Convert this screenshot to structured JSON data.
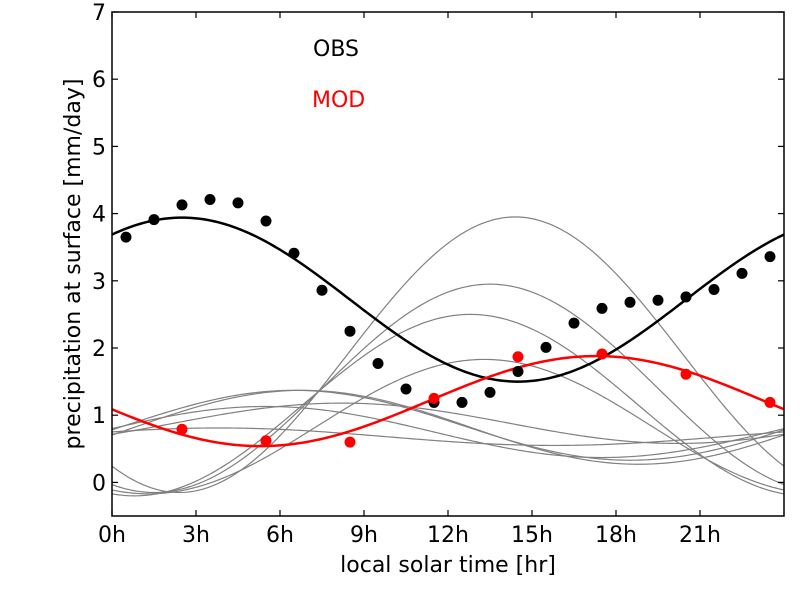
{
  "chart_data": {
    "type": "line",
    "xlabel": "local solar time [hr]",
    "ylabel": "precipitation at surface [mm/day]",
    "xlim": [
      0,
      24
    ],
    "ylim": [
      -0.5,
      7
    ],
    "x_ticks": [
      {
        "value": 0,
        "label": "0h"
      },
      {
        "value": 3,
        "label": "3h"
      },
      {
        "value": 6,
        "label": "6h"
      },
      {
        "value": 9,
        "label": "9h"
      },
      {
        "value": 12,
        "label": "12h"
      },
      {
        "value": 15,
        "label": "15h"
      },
      {
        "value": 18,
        "label": "18h"
      },
      {
        "value": 21,
        "label": "21h"
      }
    ],
    "y_ticks": [
      {
        "value": 0,
        "label": "0"
      },
      {
        "value": 1,
        "label": "1"
      },
      {
        "value": 2,
        "label": "2"
      },
      {
        "value": 3,
        "label": "3"
      },
      {
        "value": 4,
        "label": "4"
      },
      {
        "value": 5,
        "label": "5"
      },
      {
        "value": 6,
        "label": "6"
      },
      {
        "value": 7,
        "label": "7"
      }
    ],
    "legend": [
      {
        "label": "OBS",
        "color": "#000000"
      },
      {
        "label": "MOD",
        "color": "#ff0000"
      }
    ],
    "legend_position": "top-center",
    "grid": false,
    "series": [
      {
        "name": "OBS",
        "kind": "points",
        "color": "#000000",
        "x": [
          0.5,
          1.5,
          2.5,
          3.5,
          4.5,
          5.5,
          6.5,
          7.5,
          8.5,
          9.5,
          10.5,
          11.5,
          12.5,
          13.5,
          14.5,
          15.5,
          16.5,
          17.5,
          18.5,
          19.5,
          20.5,
          21.5,
          22.5,
          23.5
        ],
        "y": [
          3.65,
          3.91,
          4.13,
          4.21,
          4.16,
          3.89,
          3.41,
          2.86,
          2.25,
          1.77,
          1.39,
          1.19,
          1.19,
          1.34,
          1.65,
          2.01,
          2.37,
          2.59,
          2.68,
          2.71,
          2.76,
          2.87,
          3.11,
          3.36
        ]
      },
      {
        "name": "OBS",
        "kind": "fit",
        "color": "#000000",
        "mean": 2.72,
        "amp1": 1.22,
        "phase1": 2.5,
        "amp2": 0,
        "phase2": 0
      },
      {
        "name": "MOD",
        "kind": "points",
        "color": "#ff0000",
        "x": [
          2.5,
          5.5,
          8.5,
          11.5,
          14.5,
          17.5,
          20.5,
          23.5
        ],
        "y": [
          0.79,
          0.62,
          0.6,
          1.25,
          1.87,
          1.91,
          1.61,
          1.19
        ]
      },
      {
        "name": "MOD",
        "kind": "fit",
        "color": "#ff0000",
        "mean": 1.21,
        "amp1": 0.67,
        "phase1": 17.3,
        "amp2": 0,
        "phase2": 0
      },
      {
        "kind": "fit",
        "color": "#808080",
        "mean": 1.9,
        "amp1": 2.05,
        "phase1": 14.4,
        "amp2": 0,
        "phase2": 0
      },
      {
        "kind": "fit",
        "color": "#808080",
        "mean": 1.4,
        "amp1": 1.55,
        "phase1": 13.5,
        "amp2": 0,
        "phase2": 0
      },
      {
        "kind": "fit",
        "color": "#808080",
        "mean": 1.15,
        "amp1": 1.35,
        "phase1": 12.8,
        "amp2": 0,
        "phase2": 0
      },
      {
        "kind": "fit",
        "color": "#808080",
        "mean": 0.83,
        "amp1": 1.0,
        "phase1": 13.3,
        "amp2": 0,
        "phase2": 0
      },
      {
        "kind": "fit",
        "color": "#808080",
        "mean": 0.82,
        "amp1": 0.55,
        "phase1": 6.8,
        "amp2": 0,
        "phase2": 0
      },
      {
        "kind": "fit",
        "color": "#808080",
        "mean": 0.75,
        "amp1": 0.38,
        "phase1": 5.5,
        "amp2": 0,
        "phase2": 0
      },
      {
        "kind": "fit",
        "color": "#808080",
        "mean": 0.88,
        "amp1": 0.3,
        "phase1": 8.2,
        "amp2": 0,
        "phase2": 0
      },
      {
        "kind": "fit",
        "color": "#808080",
        "mean": 0.68,
        "amp1": 0.13,
        "phase1": 3.8,
        "amp2": 0,
        "phase2": 0
      },
      {
        "kind": "fit",
        "color": "#808080",
        "mean": 0.85,
        "amp1": 0.52,
        "phase1": 6.5,
        "amp2": 0,
        "phase2": 0
      }
    ]
  }
}
